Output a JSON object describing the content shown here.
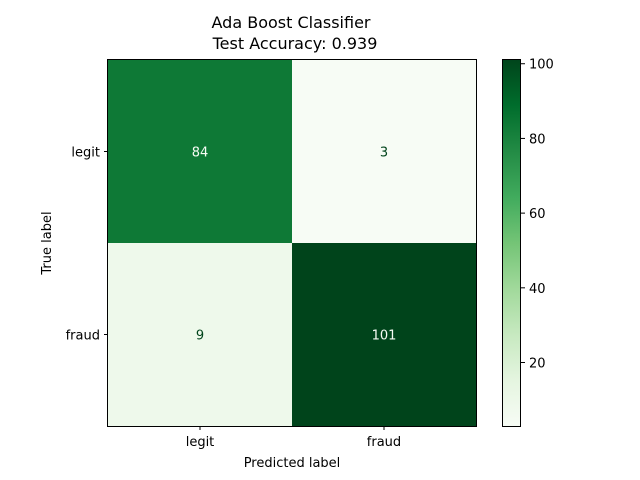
{
  "chart_data": {
    "type": "heatmap",
    "title": "Ada Boost Classifier",
    "subtitle": "Test Accuracy: 0.939",
    "xlabel": "Predicted label",
    "ylabel": "True label",
    "x_categories": [
      "legit",
      "fraud"
    ],
    "y_categories": [
      "legit",
      "fraud"
    ],
    "values": [
      [
        84,
        3
      ],
      [
        9,
        101
      ]
    ],
    "colormap": "Greens",
    "colorbar": {
      "min": 3,
      "max": 101,
      "ticks": [
        20,
        40,
        60,
        80,
        100
      ]
    },
    "grid": false
  }
}
